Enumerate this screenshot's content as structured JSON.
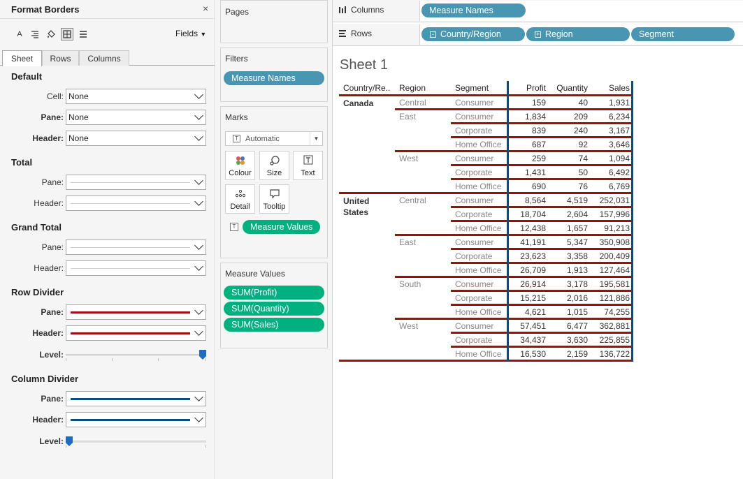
{
  "format_panel": {
    "title": "Format Borders",
    "close": "×",
    "fields_label": "Fields",
    "tabs": [
      {
        "label": "Sheet",
        "active": true
      },
      {
        "label": "Rows",
        "active": false
      },
      {
        "label": "Columns",
        "active": false
      }
    ],
    "default": {
      "title": "Default",
      "cell_label": "Cell:",
      "cell_value": "None",
      "pane_label": "Pane:",
      "pane_value": "None",
      "header_label": "Header:",
      "header_value": "None"
    },
    "total": {
      "title": "Total",
      "pane_label": "Pane:",
      "header_label": "Header:"
    },
    "grand_total": {
      "title": "Grand Total",
      "pane_label": "Pane:",
      "header_label": "Header:"
    },
    "row_divider": {
      "title": "Row Divider",
      "pane_label": "Pane:",
      "header_label": "Header:",
      "level_label": "Level:",
      "level": 1.0,
      "color": "#a00e0e"
    },
    "column_divider": {
      "title": "Column Divider",
      "pane_label": "Pane:",
      "header_label": "Header:",
      "level_label": "Level:",
      "level": 0.0,
      "color": "#0b4c7e"
    }
  },
  "cards": {
    "pages": {
      "title": "Pages"
    },
    "filters": {
      "title": "Filters",
      "pills": [
        "Measure Names"
      ]
    },
    "marks": {
      "title": "Marks",
      "type": "Automatic",
      "buttons": [
        "Colour",
        "Size",
        "Text",
        "Detail",
        "Tooltip"
      ],
      "pill": "Measure Values"
    },
    "measure_values": {
      "title": "Measure Values",
      "pills": [
        "SUM(Profit)",
        "SUM(Quantity)",
        "SUM(Sales)"
      ]
    }
  },
  "shelves": {
    "columns": {
      "label": "Columns",
      "pills": [
        "Measure Names"
      ]
    },
    "rows": {
      "label": "Rows",
      "pills": [
        "Country/Region",
        "Region",
        "Segment"
      ]
    }
  },
  "sheet": {
    "title": "Sheet 1",
    "headers": [
      "Country/Re..",
      "Region",
      "Segment",
      "Profit",
      "Quantity",
      "Sales"
    ],
    "countries": [
      {
        "name": "Canada",
        "regions": [
          {
            "name": "Central",
            "rows": [
              [
                "Consumer",
                "159",
                "40",
                "1,931"
              ]
            ]
          },
          {
            "name": "East",
            "rows": [
              [
                "Consumer",
                "1,834",
                "209",
                "6,234"
              ],
              [
                "Corporate",
                "839",
                "240",
                "3,167"
              ],
              [
                "Home Office",
                "687",
                "92",
                "3,646"
              ]
            ]
          },
          {
            "name": "West",
            "rows": [
              [
                "Consumer",
                "259",
                "74",
                "1,094"
              ],
              [
                "Corporate",
                "1,431",
                "50",
                "6,492"
              ],
              [
                "Home Office",
                "690",
                "76",
                "6,769"
              ]
            ]
          }
        ]
      },
      {
        "name": "United States",
        "regions": [
          {
            "name": "Central",
            "rows": [
              [
                "Consumer",
                "8,564",
                "4,519",
                "252,031"
              ],
              [
                "Corporate",
                "18,704",
                "2,604",
                "157,996"
              ],
              [
                "Home Office",
                "12,438",
                "1,657",
                "91,213"
              ]
            ]
          },
          {
            "name": "East",
            "rows": [
              [
                "Consumer",
                "41,191",
                "5,347",
                "350,908"
              ],
              [
                "Corporate",
                "23,623",
                "3,358",
                "200,409"
              ],
              [
                "Home Office",
                "26,709",
                "1,913",
                "127,464"
              ]
            ]
          },
          {
            "name": "South",
            "rows": [
              [
                "Consumer",
                "26,914",
                "3,178",
                "195,581"
              ],
              [
                "Corporate",
                "15,215",
                "2,016",
                "121,886"
              ],
              [
                "Home Office",
                "4,621",
                "1,015",
                "74,255"
              ]
            ]
          },
          {
            "name": "West",
            "rows": [
              [
                "Consumer",
                "57,451",
                "6,477",
                "362,881"
              ],
              [
                "Corporate",
                "34,437",
                "3,630",
                "225,855"
              ],
              [
                "Home Office",
                "16,530",
                "2,159",
                "136,722"
              ]
            ]
          }
        ]
      }
    ]
  }
}
